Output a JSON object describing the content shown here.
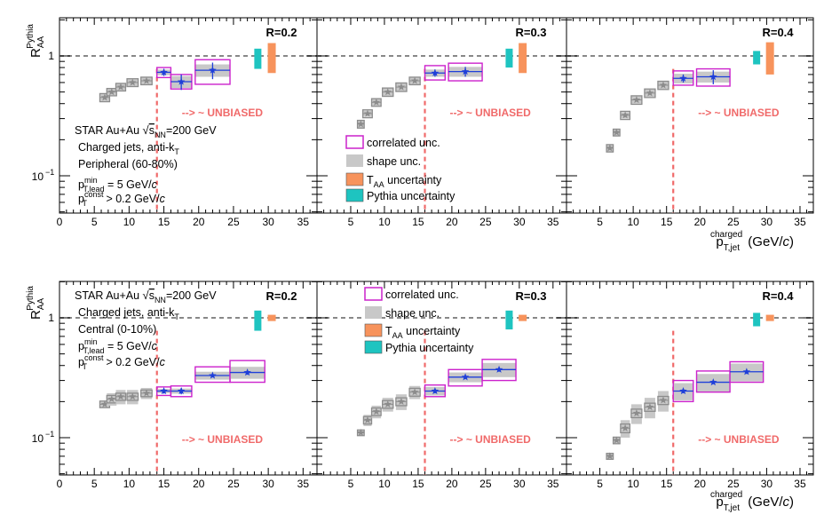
{
  "figure": {
    "ylabel_main": "R",
    "ylabel_sub": "AA",
    "ylabel_sup": "Pythia",
    "xlabel_main": "p",
    "xlabel_sub": "T,jet",
    "xlabel_sup": "charged",
    "xlabel_unit": " (GeV/",
    "xlabel_unit_c": "c",
    "xlabel_unit_end": ")",
    "unbiased_label": "--> ~ UNBIASED",
    "y_tick_1": "1",
    "y_tick_01": "10",
    "y_tick_01_exp": "−1"
  },
  "colors": {
    "data": "#1f3fd9",
    "biased": "#8c8c8c",
    "shape": "#c8c8c8",
    "correlated": "#cc22cc",
    "taa": "#f7935c",
    "pythia": "#1ec4c0",
    "cut_line": "#f06a6a",
    "unity_line": "#888888"
  },
  "info_peripheral": {
    "line1a": "STAR Au+Au ",
    "line1b": "s",
    "line1c": "NN",
    "line1d": "=200 GeV",
    "line2a": "Charged jets, anti-k",
    "line2b": "T",
    "line3": "Peripheral (60-80%)",
    "line4a": "p",
    "line4sup": "min",
    "line4sub": "T,lead",
    "line4b": " = 5 GeV/",
    "line4c": "c",
    "line5a": "p",
    "line5sup": "const",
    "line5sub": "T",
    "line5b": " > 0.2 GeV/",
    "line5c": "c"
  },
  "info_central": {
    "line1a": "STAR Au+Au ",
    "line1b": "s",
    "line1c": "NN",
    "line1d": "=200 GeV",
    "line2a": "Charged jets, anti-k",
    "line2b": "T",
    "line3": "Central (0-10%)",
    "line4a": "p",
    "line4sup": "min",
    "line4sub": "T,lead",
    "line4b": " = 5 GeV/",
    "line4c": "c",
    "line5a": "p",
    "line5sup": "const",
    "line5sub": "T",
    "line5b": " > 0.2 GeV/",
    "line5c": "c"
  },
  "legend": {
    "correlated": "correlated unc.",
    "shape": "shape unc.",
    "taa_a": "T",
    "taa_sub": "AA",
    "taa_b": " uncertainty",
    "pythia": "Pythia uncertainty"
  },
  "chart_data": [
    {
      "type": "scatter",
      "row": "peripheral",
      "radius_label": "R=0.2",
      "xlim": [
        0,
        37
      ],
      "ylim": [
        0.05,
        2.0
      ],
      "log_y": true,
      "x_ticks": [
        0,
        5,
        10,
        15,
        20,
        25,
        30,
        35
      ],
      "unbiased_cut": 14,
      "biased": [
        {
          "x": 6.5,
          "y": 0.45,
          "xerr": 0.7,
          "shape": 0.03,
          "corr": 0.035
        },
        {
          "x": 7.5,
          "y": 0.5,
          "xerr": 0.7,
          "shape": 0.03,
          "corr": 0.035
        },
        {
          "x": 8.8,
          "y": 0.55,
          "xerr": 0.7,
          "shape": 0.035,
          "corr": 0.04
        },
        {
          "x": 10.5,
          "y": 0.6,
          "xerr": 0.8,
          "shape": 0.04,
          "corr": 0.045
        },
        {
          "x": 12.5,
          "y": 0.62,
          "xerr": 0.8,
          "shape": 0.04,
          "corr": 0.045
        }
      ],
      "unbiased": [
        {
          "x": 15,
          "y": 0.73,
          "xerr": 1.0,
          "stat": 0.05,
          "shape": 0.04,
          "corr_lo": 0.66,
          "corr_hi": 0.8
        },
        {
          "x": 17.5,
          "y": 0.61,
          "xerr": 1.5,
          "stat": 0.09,
          "shape": 0.07,
          "corr_lo": 0.53,
          "corr_hi": 0.7
        },
        {
          "x": 22,
          "y": 0.76,
          "xerr": 2.5,
          "stat": 0.12,
          "shape": 0.09,
          "corr_lo": 0.58,
          "corr_hi": 0.93
        }
      ],
      "pythia_band": {
        "x": 28.5,
        "lo": 0.78,
        "hi": 1.15
      },
      "taa_band": {
        "x": 30.5,
        "lo": 0.72,
        "hi": 1.28
      }
    },
    {
      "type": "scatter",
      "row": "peripheral",
      "radius_label": "R=0.3",
      "xlim": [
        0,
        37
      ],
      "ylim": [
        0.05,
        2.0
      ],
      "log_y": true,
      "x_ticks": [
        5,
        10,
        15,
        20,
        25,
        30,
        35
      ],
      "unbiased_cut": 16,
      "biased": [
        {
          "x": 6.5,
          "y": 0.27,
          "xerr": 0.5,
          "shape": 0.02,
          "corr": 0.02
        },
        {
          "x": 7.5,
          "y": 0.33,
          "xerr": 0.7,
          "shape": 0.02,
          "corr": 0.025
        },
        {
          "x": 8.8,
          "y": 0.41,
          "xerr": 0.7,
          "shape": 0.03,
          "corr": 0.03
        },
        {
          "x": 10.5,
          "y": 0.5,
          "xerr": 0.8,
          "shape": 0.04,
          "corr": 0.04
        },
        {
          "x": 12.5,
          "y": 0.55,
          "xerr": 0.8,
          "shape": 0.04,
          "corr": 0.045
        },
        {
          "x": 14.5,
          "y": 0.62,
          "xerr": 0.8,
          "shape": 0.04,
          "corr": 0.045
        }
      ],
      "unbiased": [
        {
          "x": 17.5,
          "y": 0.72,
          "xerr": 1.5,
          "stat": 0.05,
          "shape": 0.05,
          "corr_lo": 0.63,
          "corr_hi": 0.83
        },
        {
          "x": 22,
          "y": 0.74,
          "xerr": 2.5,
          "stat": 0.07,
          "shape": 0.07,
          "corr_lo": 0.62,
          "corr_hi": 0.87
        }
      ],
      "pythia_band": {
        "x": 28.5,
        "lo": 0.8,
        "hi": 1.15
      },
      "taa_band": {
        "x": 30.5,
        "lo": 0.72,
        "hi": 1.28
      }
    },
    {
      "type": "scatter",
      "row": "peripheral",
      "radius_label": "R=0.4",
      "xlim": [
        0,
        37
      ],
      "ylim": [
        0.05,
        2.0
      ],
      "log_y": true,
      "x_ticks": [
        5,
        10,
        15,
        20,
        25,
        30,
        35
      ],
      "unbiased_cut": 16,
      "biased": [
        {
          "x": 6.5,
          "y": 0.17,
          "xerr": 0.5,
          "shape": 0.012,
          "corr": 0.012
        },
        {
          "x": 7.5,
          "y": 0.23,
          "xerr": 0.5,
          "shape": 0.015,
          "corr": 0.015
        },
        {
          "x": 8.8,
          "y": 0.32,
          "xerr": 0.7,
          "shape": 0.02,
          "corr": 0.025
        },
        {
          "x": 10.5,
          "y": 0.43,
          "xerr": 0.8,
          "shape": 0.03,
          "corr": 0.035
        },
        {
          "x": 12.5,
          "y": 0.49,
          "xerr": 0.8,
          "shape": 0.035,
          "corr": 0.04
        },
        {
          "x": 14.5,
          "y": 0.57,
          "xerr": 0.8,
          "shape": 0.04,
          "corr": 0.045
        }
      ],
      "unbiased": [
        {
          "x": 17.5,
          "y": 0.65,
          "xerr": 1.5,
          "stat": 0.05,
          "shape": 0.06,
          "corr_lo": 0.57,
          "corr_hi": 0.75
        },
        {
          "x": 22,
          "y": 0.67,
          "xerr": 2.5,
          "stat": 0.09,
          "shape": 0.07,
          "corr_lo": 0.56,
          "corr_hi": 0.78
        }
      ],
      "pythia_band": {
        "x": 28.5,
        "lo": 0.85,
        "hi": 1.1
      },
      "taa_band": {
        "x": 30.5,
        "lo": 0.7,
        "hi": 1.3
      }
    },
    {
      "type": "scatter",
      "row": "central",
      "radius_label": "R=0.2",
      "xlim": [
        0,
        37
      ],
      "ylim": [
        0.05,
        2.0
      ],
      "log_y": true,
      "x_ticks": [
        0,
        5,
        10,
        15,
        20,
        25,
        30,
        35
      ],
      "unbiased_cut": 14,
      "biased": [
        {
          "x": 6.5,
          "y": 0.19,
          "xerr": 0.7,
          "shape": 0.01,
          "corr": 0.012
        },
        {
          "x": 7.5,
          "y": 0.21,
          "xerr": 0.7,
          "shape": 0.025,
          "corr": 0.015
        },
        {
          "x": 8.8,
          "y": 0.22,
          "xerr": 0.7,
          "shape": 0.03,
          "corr": 0.015
        },
        {
          "x": 10.5,
          "y": 0.22,
          "xerr": 0.8,
          "shape": 0.03,
          "corr": 0.015
        },
        {
          "x": 12.5,
          "y": 0.235,
          "xerr": 0.8,
          "shape": 0.025,
          "corr": 0.015
        }
      ],
      "unbiased": [
        {
          "x": 15,
          "y": 0.245,
          "xerr": 1.0,
          "stat": 0.012,
          "shape": 0.01,
          "corr_lo": 0.225,
          "corr_hi": 0.265
        },
        {
          "x": 17.5,
          "y": 0.245,
          "xerr": 1.5,
          "stat": 0.015,
          "shape": 0.012,
          "corr_lo": 0.22,
          "corr_hi": 0.27
        },
        {
          "x": 22,
          "y": 0.33,
          "xerr": 2.5,
          "stat": 0.01,
          "shape": 0.025,
          "corr_lo": 0.29,
          "corr_hi": 0.39
        },
        {
          "x": 27,
          "y": 0.35,
          "xerr": 2.5,
          "stat": 0.015,
          "shape": 0.04,
          "corr_lo": 0.29,
          "corr_hi": 0.44
        }
      ],
      "pythia_band": {
        "x": 28.5,
        "lo": 0.78,
        "hi": 1.15
      },
      "taa_band": {
        "x": 30.5,
        "lo": 0.94,
        "hi": 1.06
      }
    },
    {
      "type": "scatter",
      "row": "central",
      "radius_label": "R=0.3",
      "xlim": [
        0,
        37
      ],
      "ylim": [
        0.05,
        2.0
      ],
      "log_y": true,
      "x_ticks": [
        5,
        10,
        15,
        20,
        25,
        30,
        35
      ],
      "unbiased_cut": 16,
      "biased": [
        {
          "x": 6.5,
          "y": 0.11,
          "xerr": 0.5,
          "shape": 0.005,
          "corr": 0.006
        },
        {
          "x": 7.5,
          "y": 0.14,
          "xerr": 0.6,
          "shape": 0.015,
          "corr": 0.01
        },
        {
          "x": 8.8,
          "y": 0.165,
          "xerr": 0.7,
          "shape": 0.02,
          "corr": 0.012
        },
        {
          "x": 10.5,
          "y": 0.19,
          "xerr": 0.8,
          "shape": 0.025,
          "corr": 0.014
        },
        {
          "x": 12.5,
          "y": 0.2,
          "xerr": 0.8,
          "shape": 0.03,
          "corr": 0.015
        },
        {
          "x": 14.5,
          "y": 0.24,
          "xerr": 0.8,
          "shape": 0.03,
          "corr": 0.018
        }
      ],
      "unbiased": [
        {
          "x": 17.5,
          "y": 0.245,
          "xerr": 1.5,
          "stat": 0.01,
          "shape": 0.02,
          "corr_lo": 0.22,
          "corr_hi": 0.275
        },
        {
          "x": 22,
          "y": 0.32,
          "xerr": 2.5,
          "stat": 0.01,
          "shape": 0.03,
          "corr_lo": 0.27,
          "corr_hi": 0.37
        },
        {
          "x": 27,
          "y": 0.37,
          "xerr": 2.5,
          "stat": 0.015,
          "shape": 0.05,
          "corr_lo": 0.3,
          "corr_hi": 0.45
        }
      ],
      "pythia_band": {
        "x": 28.5,
        "lo": 0.8,
        "hi": 1.15
      },
      "taa_band": {
        "x": 30.5,
        "lo": 0.94,
        "hi": 1.06
      }
    },
    {
      "type": "scatter",
      "row": "central",
      "radius_label": "R=0.4",
      "xlim": [
        0,
        37
      ],
      "ylim": [
        0.05,
        2.0
      ],
      "log_y": true,
      "x_ticks": [
        5,
        10,
        15,
        20,
        25,
        30,
        35
      ],
      "unbiased_cut": 16,
      "biased": [
        {
          "x": 6.5,
          "y": 0.07,
          "xerr": 0.5,
          "shape": 0.004,
          "corr": 0.004
        },
        {
          "x": 7.5,
          "y": 0.095,
          "xerr": 0.5,
          "shape": 0.006,
          "corr": 0.006
        },
        {
          "x": 8.8,
          "y": 0.12,
          "xerr": 0.7,
          "shape": 0.02,
          "corr": 0.01
        },
        {
          "x": 10.5,
          "y": 0.16,
          "xerr": 0.8,
          "shape": 0.03,
          "corr": 0.013
        },
        {
          "x": 12.5,
          "y": 0.18,
          "xerr": 0.8,
          "shape": 0.035,
          "corr": 0.014
        },
        {
          "x": 14.5,
          "y": 0.205,
          "xerr": 0.8,
          "shape": 0.04,
          "corr": 0.016
        }
      ],
      "unbiased": [
        {
          "x": 17.5,
          "y": 0.245,
          "xerr": 1.5,
          "stat": 0.01,
          "shape": 0.04,
          "corr_lo": 0.2,
          "corr_hi": 0.3
        },
        {
          "x": 22,
          "y": 0.29,
          "xerr": 2.5,
          "stat": 0.01,
          "shape": 0.05,
          "corr_lo": 0.24,
          "corr_hi": 0.36
        },
        {
          "x": 27,
          "y": 0.355,
          "xerr": 2.5,
          "stat": 0.015,
          "shape": 0.06,
          "corr_lo": 0.29,
          "corr_hi": 0.43
        }
      ],
      "pythia_band": {
        "x": 28.5,
        "lo": 0.85,
        "hi": 1.1
      },
      "taa_band": {
        "x": 30.5,
        "lo": 0.94,
        "hi": 1.06
      }
    }
  ]
}
